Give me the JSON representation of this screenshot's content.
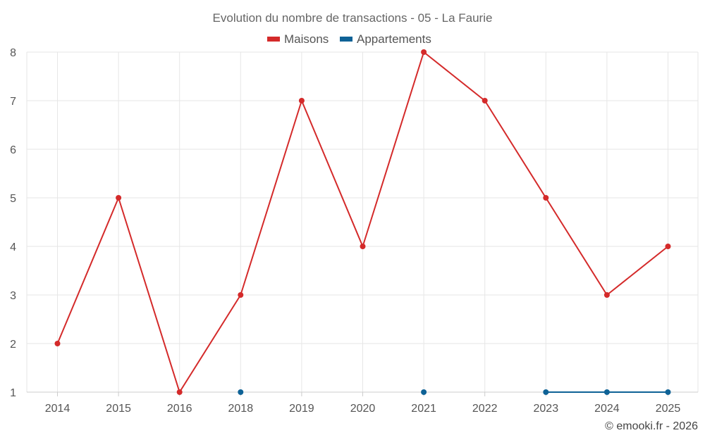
{
  "chart_data": {
    "type": "line",
    "title": "Evolution du nombre de transactions - 05 - La Faurie",
    "categories": [
      "2014",
      "2015",
      "2016",
      "2018",
      "2019",
      "2020",
      "2021",
      "2022",
      "2023",
      "2024",
      "2025"
    ],
    "ylim": [
      1,
      8
    ],
    "yticks": [
      1,
      2,
      3,
      4,
      5,
      6,
      7,
      8
    ],
    "grid": true,
    "legend_position": "top-center",
    "series": [
      {
        "name": "Maisons",
        "color": "#d42a2a",
        "values": [
          2,
          5,
          1,
          3,
          7,
          4,
          8,
          7,
          5,
          3,
          4
        ]
      },
      {
        "name": "Appartements",
        "color": "#0e6296",
        "values": [
          null,
          null,
          null,
          1,
          null,
          null,
          1,
          null,
          1,
          1,
          1
        ]
      }
    ]
  },
  "credit": "© emooki.fr - 2026"
}
